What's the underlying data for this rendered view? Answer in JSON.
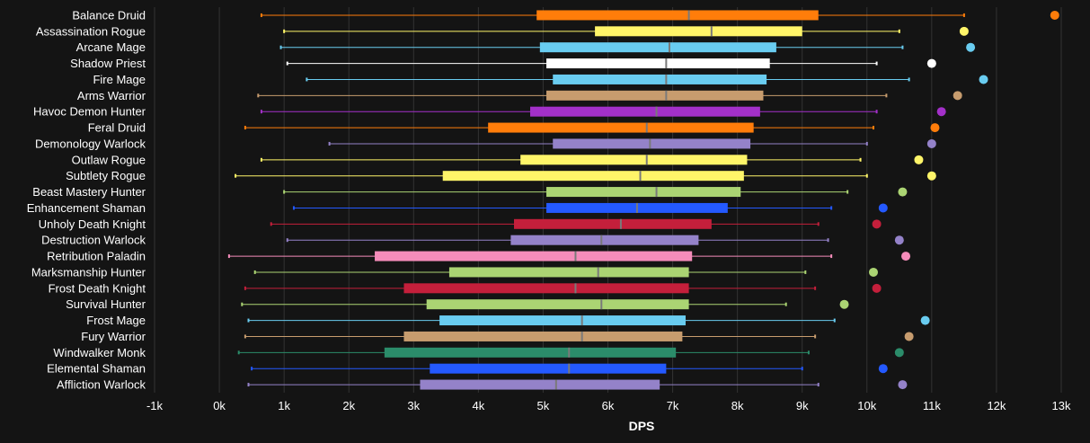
{
  "chart_data": {
    "type": "boxplot",
    "title": "",
    "xlabel": "DPS",
    "ylabel": "",
    "xlim": [
      -1000,
      13000
    ],
    "x_ticks": [
      -1000,
      0,
      1000,
      2000,
      3000,
      4000,
      5000,
      6000,
      7000,
      8000,
      9000,
      10000,
      11000,
      12000,
      13000
    ],
    "x_tick_labels": [
      "-1k",
      "0k",
      "1k",
      "2k",
      "3k",
      "4k",
      "5k",
      "6k",
      "7k",
      "8k",
      "9k",
      "10k",
      "11k",
      "12k",
      "13k"
    ],
    "grid": "vertical",
    "colors": {
      "background": "#141414",
      "grid": "#333333",
      "text": "#ffffff"
    },
    "series": [
      {
        "name": "Balance Druid",
        "color": "#ff7d0a",
        "min": 650,
        "q1": 4900,
        "median": 7250,
        "q3": 9250,
        "max": 11500,
        "outlier": 12900
      },
      {
        "name": "Assassination Rogue",
        "color": "#fff569",
        "min": 1000,
        "q1": 5800,
        "median": 7600,
        "q3": 9000,
        "max": 10500,
        "outlier": 11500
      },
      {
        "name": "Arcane Mage",
        "color": "#69ccf0",
        "min": 950,
        "q1": 4950,
        "median": 6950,
        "q3": 8600,
        "max": 10550,
        "outlier": 11600
      },
      {
        "name": "Shadow Priest",
        "color": "#ffffff",
        "min": 1050,
        "q1": 5050,
        "median": 6900,
        "q3": 8500,
        "max": 10150,
        "outlier": 11000
      },
      {
        "name": "Fire Mage",
        "color": "#69ccf0",
        "min": 1350,
        "q1": 5150,
        "median": 6900,
        "q3": 8450,
        "max": 10650,
        "outlier": 11800
      },
      {
        "name": "Arms Warrior",
        "color": "#c79c6e",
        "min": 600,
        "q1": 5050,
        "median": 6900,
        "q3": 8400,
        "max": 10300,
        "outlier": 11400
      },
      {
        "name": "Havoc Demon Hunter",
        "color": "#a330c9",
        "min": 650,
        "q1": 4800,
        "median": 6750,
        "q3": 8350,
        "max": 10150,
        "outlier": 11150
      },
      {
        "name": "Feral Druid",
        "color": "#ff7d0a",
        "min": 400,
        "q1": 4150,
        "median": 6600,
        "q3": 8250,
        "max": 10100,
        "outlier": 11050
      },
      {
        "name": "Demonology Warlock",
        "color": "#9482c9",
        "min": 1700,
        "q1": 5150,
        "median": 6650,
        "q3": 8200,
        "max": 10000,
        "outlier": 11000
      },
      {
        "name": "Outlaw Rogue",
        "color": "#fff569",
        "min": 650,
        "q1": 4650,
        "median": 6600,
        "q3": 8150,
        "max": 9900,
        "outlier": 10800
      },
      {
        "name": "Subtlety Rogue",
        "color": "#fff569",
        "min": 250,
        "q1": 3450,
        "median": 6500,
        "q3": 8100,
        "max": 10000,
        "outlier": 11000
      },
      {
        "name": "Beast Mastery Hunter",
        "color": "#abd473",
        "min": 1000,
        "q1": 5050,
        "median": 6750,
        "q3": 8050,
        "max": 9700,
        "outlier": 10550
      },
      {
        "name": "Enhancement Shaman",
        "color": "#2459ff",
        "min": 1150,
        "q1": 5050,
        "median": 6450,
        "q3": 7850,
        "max": 9450,
        "outlier": 10250
      },
      {
        "name": "Unholy Death Knight",
        "color": "#c41f3b",
        "min": 800,
        "q1": 4550,
        "median": 6200,
        "q3": 7600,
        "max": 9250,
        "outlier": 10150
      },
      {
        "name": "Destruction Warlock",
        "color": "#9482c9",
        "min": 1050,
        "q1": 4500,
        "median": 5900,
        "q3": 7400,
        "max": 9400,
        "outlier": 10500
      },
      {
        "name": "Retribution Paladin",
        "color": "#f58cba",
        "min": 150,
        "q1": 2400,
        "median": 5500,
        "q3": 7300,
        "max": 9450,
        "outlier": 10600
      },
      {
        "name": "Marksmanship Hunter",
        "color": "#abd473",
        "min": 550,
        "q1": 3550,
        "median": 5850,
        "q3": 7250,
        "max": 9050,
        "outlier": 10100
      },
      {
        "name": "Frost Death Knight",
        "color": "#c41f3b",
        "min": 400,
        "q1": 2850,
        "median": 5500,
        "q3": 7250,
        "max": 9200,
        "outlier": 10150
      },
      {
        "name": "Survival Hunter",
        "color": "#abd473",
        "min": 350,
        "q1": 3200,
        "median": 5900,
        "q3": 7250,
        "max": 8750,
        "outlier": 9650
      },
      {
        "name": "Frost Mage",
        "color": "#69ccf0",
        "min": 450,
        "q1": 3400,
        "median": 5600,
        "q3": 7200,
        "max": 9500,
        "outlier": 10900
      },
      {
        "name": "Fury Warrior",
        "color": "#c79c6e",
        "min": 400,
        "q1": 2850,
        "median": 5600,
        "q3": 7150,
        "max": 9200,
        "outlier": 10650
      },
      {
        "name": "Windwalker Monk",
        "color": "#2b8c6a",
        "min": 300,
        "q1": 2550,
        "median": 5400,
        "q3": 7050,
        "max": 9100,
        "outlier": 10500
      },
      {
        "name": "Elemental Shaman",
        "color": "#2459ff",
        "min": 500,
        "q1": 3250,
        "median": 5400,
        "q3": 6900,
        "max": 9000,
        "outlier": 10250
      },
      {
        "name": "Affliction Warlock",
        "color": "#9482c9",
        "min": 450,
        "q1": 3100,
        "median": 5200,
        "q3": 6800,
        "max": 9250,
        "outlier": 10550
      }
    ]
  }
}
